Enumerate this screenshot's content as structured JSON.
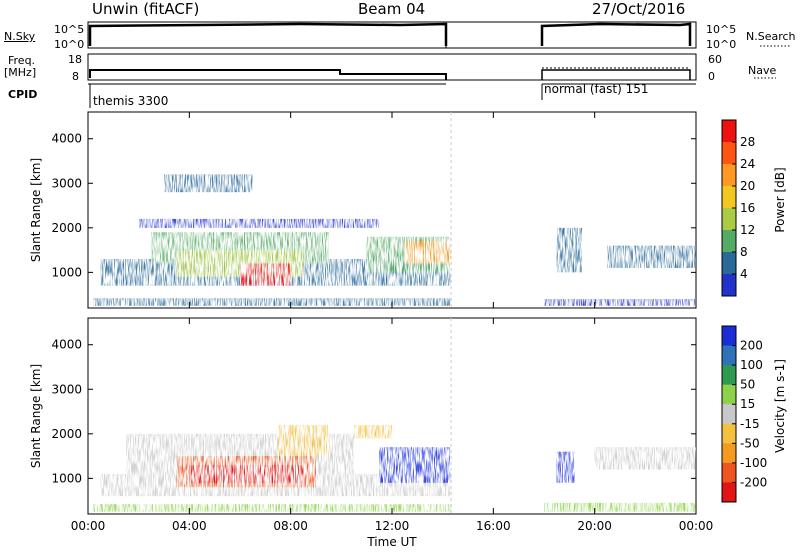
{
  "header": {
    "station": "Unwin (fitACF)",
    "beam": "Beam 04",
    "date": "27/Oct/2016"
  },
  "strip_labels": {
    "nsky": "N.Sky",
    "nsky_ticks": [
      "10^5",
      "10^0"
    ],
    "nsearch": "N.Search",
    "nsearch_ticks": [
      "10^5",
      "10^0"
    ],
    "freq": "Freq.",
    "freq_unit": "[MHz]",
    "freq_ticks": [
      "18",
      "8"
    ],
    "nave": "Nave",
    "nave_ticks": [
      "60",
      "0"
    ],
    "cpid": "CPID",
    "cpid_left": "themis 3300",
    "cpid_right": "normal (fast) 151"
  },
  "chart_data": [
    {
      "type": "heatmap",
      "title": "",
      "ylabel": "Slant Range [km]",
      "xlabel": "",
      "x_ticks": [
        "00:00",
        "04:00",
        "08:00",
        "12:00",
        "16:00",
        "20:00",
        "00:00"
      ],
      "y_ticks": [
        1000,
        2000,
        3000,
        4000
      ],
      "ylim": [
        200,
        4600
      ],
      "colorbar": {
        "label": "Power [dB]",
        "ticks": [
          "28",
          "24",
          "20",
          "16",
          "12",
          "8",
          "4"
        ],
        "colors": [
          "#ee1111",
          "#ff5511",
          "#ff9922",
          "#f2c820",
          "#aacc44",
          "#55aa66",
          "#2a6a99",
          "#2233cc"
        ]
      },
      "data_gap": [
        "14:20",
        "18:00"
      ]
    },
    {
      "type": "heatmap",
      "title": "",
      "ylabel": "Slant Range [km]",
      "xlabel": "Time UT",
      "x_ticks": [
        "00:00",
        "04:00",
        "08:00",
        "12:00",
        "16:00",
        "20:00",
        "00:00"
      ],
      "y_ticks": [
        1000,
        2000,
        3000,
        4000
      ],
      "ylim": [
        200,
        4600
      ],
      "colorbar": {
        "label": "Velocity [m s-1]",
        "ticks": [
          "200",
          "100",
          "50",
          "15",
          "-15",
          "-50",
          "-100",
          "-200"
        ],
        "colors": [
          "#1a2ed8",
          "#2e72b8",
          "#2e9a50",
          "#8ed24c",
          "#c8c8c8",
          "#f3c040",
          "#f59a20",
          "#ee5520",
          "#e01515"
        ]
      },
      "data_gap": [
        "14:20",
        "18:00"
      ]
    }
  ]
}
